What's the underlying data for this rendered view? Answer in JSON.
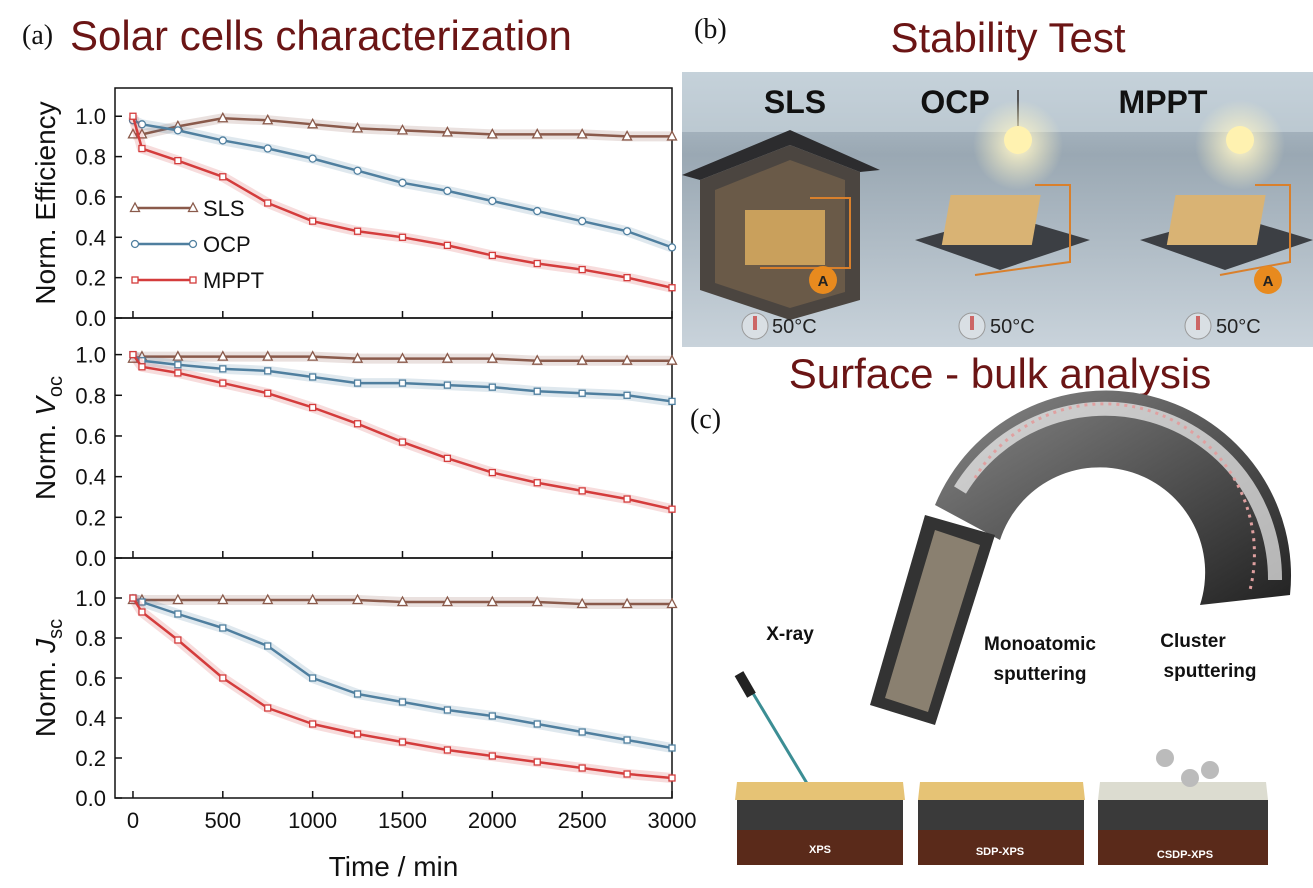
{
  "chart_data": [
    {
      "type": "line",
      "ylabel": "Norm. Efficiency",
      "x": [
        0,
        50,
        250,
        500,
        750,
        1000,
        1250,
        1500,
        1750,
        2000,
        2250,
        2500,
        2750,
        3000
      ],
      "xlim": [
        -100,
        3000
      ],
      "xticks": [
        0,
        500,
        1000,
        1500,
        2000,
        2500,
        3000
      ],
      "ylim": [
        0,
        1.14
      ],
      "yticks": [
        {
          "value": 0,
          "label": "0.0"
        },
        0.2,
        0.4,
        0.6,
        0.8,
        {
          "value": 1,
          "label": "1.0"
        }
      ],
      "legend": "center left",
      "series": [
        {
          "name": "SLS",
          "color": "#8a5a4b",
          "marker": "triangle",
          "values": [
            0.91,
            0.91,
            0.95,
            0.99,
            0.98,
            0.96,
            0.94,
            0.93,
            0.92,
            0.91,
            0.91,
            0.91,
            0.9,
            0.9
          ]
        },
        {
          "name": "OCP",
          "color": "#4f7f9f",
          "marker": "circle",
          "values": [
            0.98,
            0.96,
            0.93,
            0.88,
            0.84,
            0.79,
            0.73,
            0.67,
            0.63,
            0.58,
            0.53,
            0.48,
            0.43,
            0.35
          ]
        },
        {
          "name": "MPPT",
          "color": "#d43c3c",
          "marker": "square",
          "values": [
            1.0,
            0.84,
            0.78,
            0.7,
            0.57,
            0.48,
            0.43,
            0.4,
            0.36,
            0.31,
            0.27,
            0.24,
            0.2,
            0.15
          ]
        }
      ]
    },
    {
      "type": "line",
      "ylabel": {
        "text": "Norm.",
        "symbol": "V",
        "subscript": "oc"
      },
      "x": [
        0,
        50,
        250,
        500,
        750,
        1000,
        1250,
        1500,
        1750,
        2000,
        2250,
        2500,
        2750,
        3000
      ],
      "xlim": [
        -100,
        3000
      ],
      "xticks": [
        0,
        500,
        1000,
        1500,
        2000,
        2500,
        3000
      ],
      "ylim": [
        0,
        1.18
      ],
      "yticks": [
        {
          "value": 0,
          "label": "0.0"
        },
        0.2,
        0.4,
        0.6,
        0.8,
        {
          "value": 1,
          "label": "1.0"
        }
      ],
      "series": [
        {
          "name": "SLS",
          "color": "#8a5a4b",
          "marker": "triangle",
          "values": [
            0.98,
            0.99,
            0.99,
            0.99,
            0.99,
            0.99,
            0.98,
            0.98,
            0.98,
            0.98,
            0.97,
            0.97,
            0.97,
            0.97
          ]
        },
        {
          "name": "OCP",
          "color": "#4f7f9f",
          "marker": "square",
          "values": [
            1.0,
            0.97,
            0.95,
            0.93,
            0.92,
            0.89,
            0.86,
            0.86,
            0.85,
            0.84,
            0.82,
            0.81,
            0.8,
            0.77
          ]
        },
        {
          "name": "MPPT",
          "color": "#d43c3c",
          "marker": "square",
          "values": [
            1.0,
            0.94,
            0.91,
            0.86,
            0.81,
            0.74,
            0.66,
            0.57,
            0.49,
            0.42,
            0.37,
            0.33,
            0.29,
            0.24
          ]
        }
      ]
    },
    {
      "type": "line",
      "ylabel": {
        "text": "Norm.",
        "symbol": "J",
        "subscript": "sc"
      },
      "xlabel": "Time / min",
      "x": [
        0,
        50,
        250,
        500,
        750,
        1000,
        1250,
        1500,
        1750,
        2000,
        2250,
        2500,
        2750,
        3000
      ],
      "xlim": [
        -100,
        3000
      ],
      "xticks": [
        0,
        500,
        1000,
        1500,
        2000,
        2500,
        3000
      ],
      "ylim": [
        0,
        1.2
      ],
      "yticks": [
        {
          "value": 0,
          "label": "0.0"
        },
        0.2,
        0.4,
        0.6,
        0.8,
        {
          "value": 1,
          "label": "1.0"
        }
      ],
      "series": [
        {
          "name": "SLS",
          "color": "#8a5a4b",
          "marker": "triangle",
          "values": [
            0.99,
            0.99,
            0.99,
            0.99,
            0.99,
            0.99,
            0.99,
            0.98,
            0.98,
            0.98,
            0.98,
            0.97,
            0.97,
            0.97
          ]
        },
        {
          "name": "OCP",
          "color": "#4f7f9f",
          "marker": "square",
          "values": [
            1.0,
            0.98,
            0.92,
            0.85,
            0.76,
            0.6,
            0.52,
            0.48,
            0.44,
            0.41,
            0.37,
            0.33,
            0.29,
            0.25
          ]
        },
        {
          "name": "MPPT",
          "color": "#d43c3c",
          "marker": "square",
          "values": [
            1.0,
            0.93,
            0.79,
            0.6,
            0.45,
            0.37,
            0.32,
            0.28,
            0.24,
            0.21,
            0.18,
            0.15,
            0.12,
            0.1
          ]
        }
      ]
    }
  ],
  "panel_a": {
    "label": "(a)",
    "title": "Solar cells characterization"
  },
  "panel_b": {
    "label": "(b)",
    "title": "Stability Test",
    "scenes": [
      "SLS",
      "OCP",
      "MPPT"
    ],
    "temperature": "50°C",
    "meter": "A"
  },
  "panel_c": {
    "label": "(c)",
    "title": "Surface - bulk analysis",
    "source": "X-ray",
    "beam_1": [
      "Monoatomic",
      "sputtering"
    ],
    "beam_2": [
      "Cluster",
      "sputtering"
    ],
    "samples": [
      "XPS",
      "SDP-XPS",
      "CSDP-XPS"
    ]
  }
}
